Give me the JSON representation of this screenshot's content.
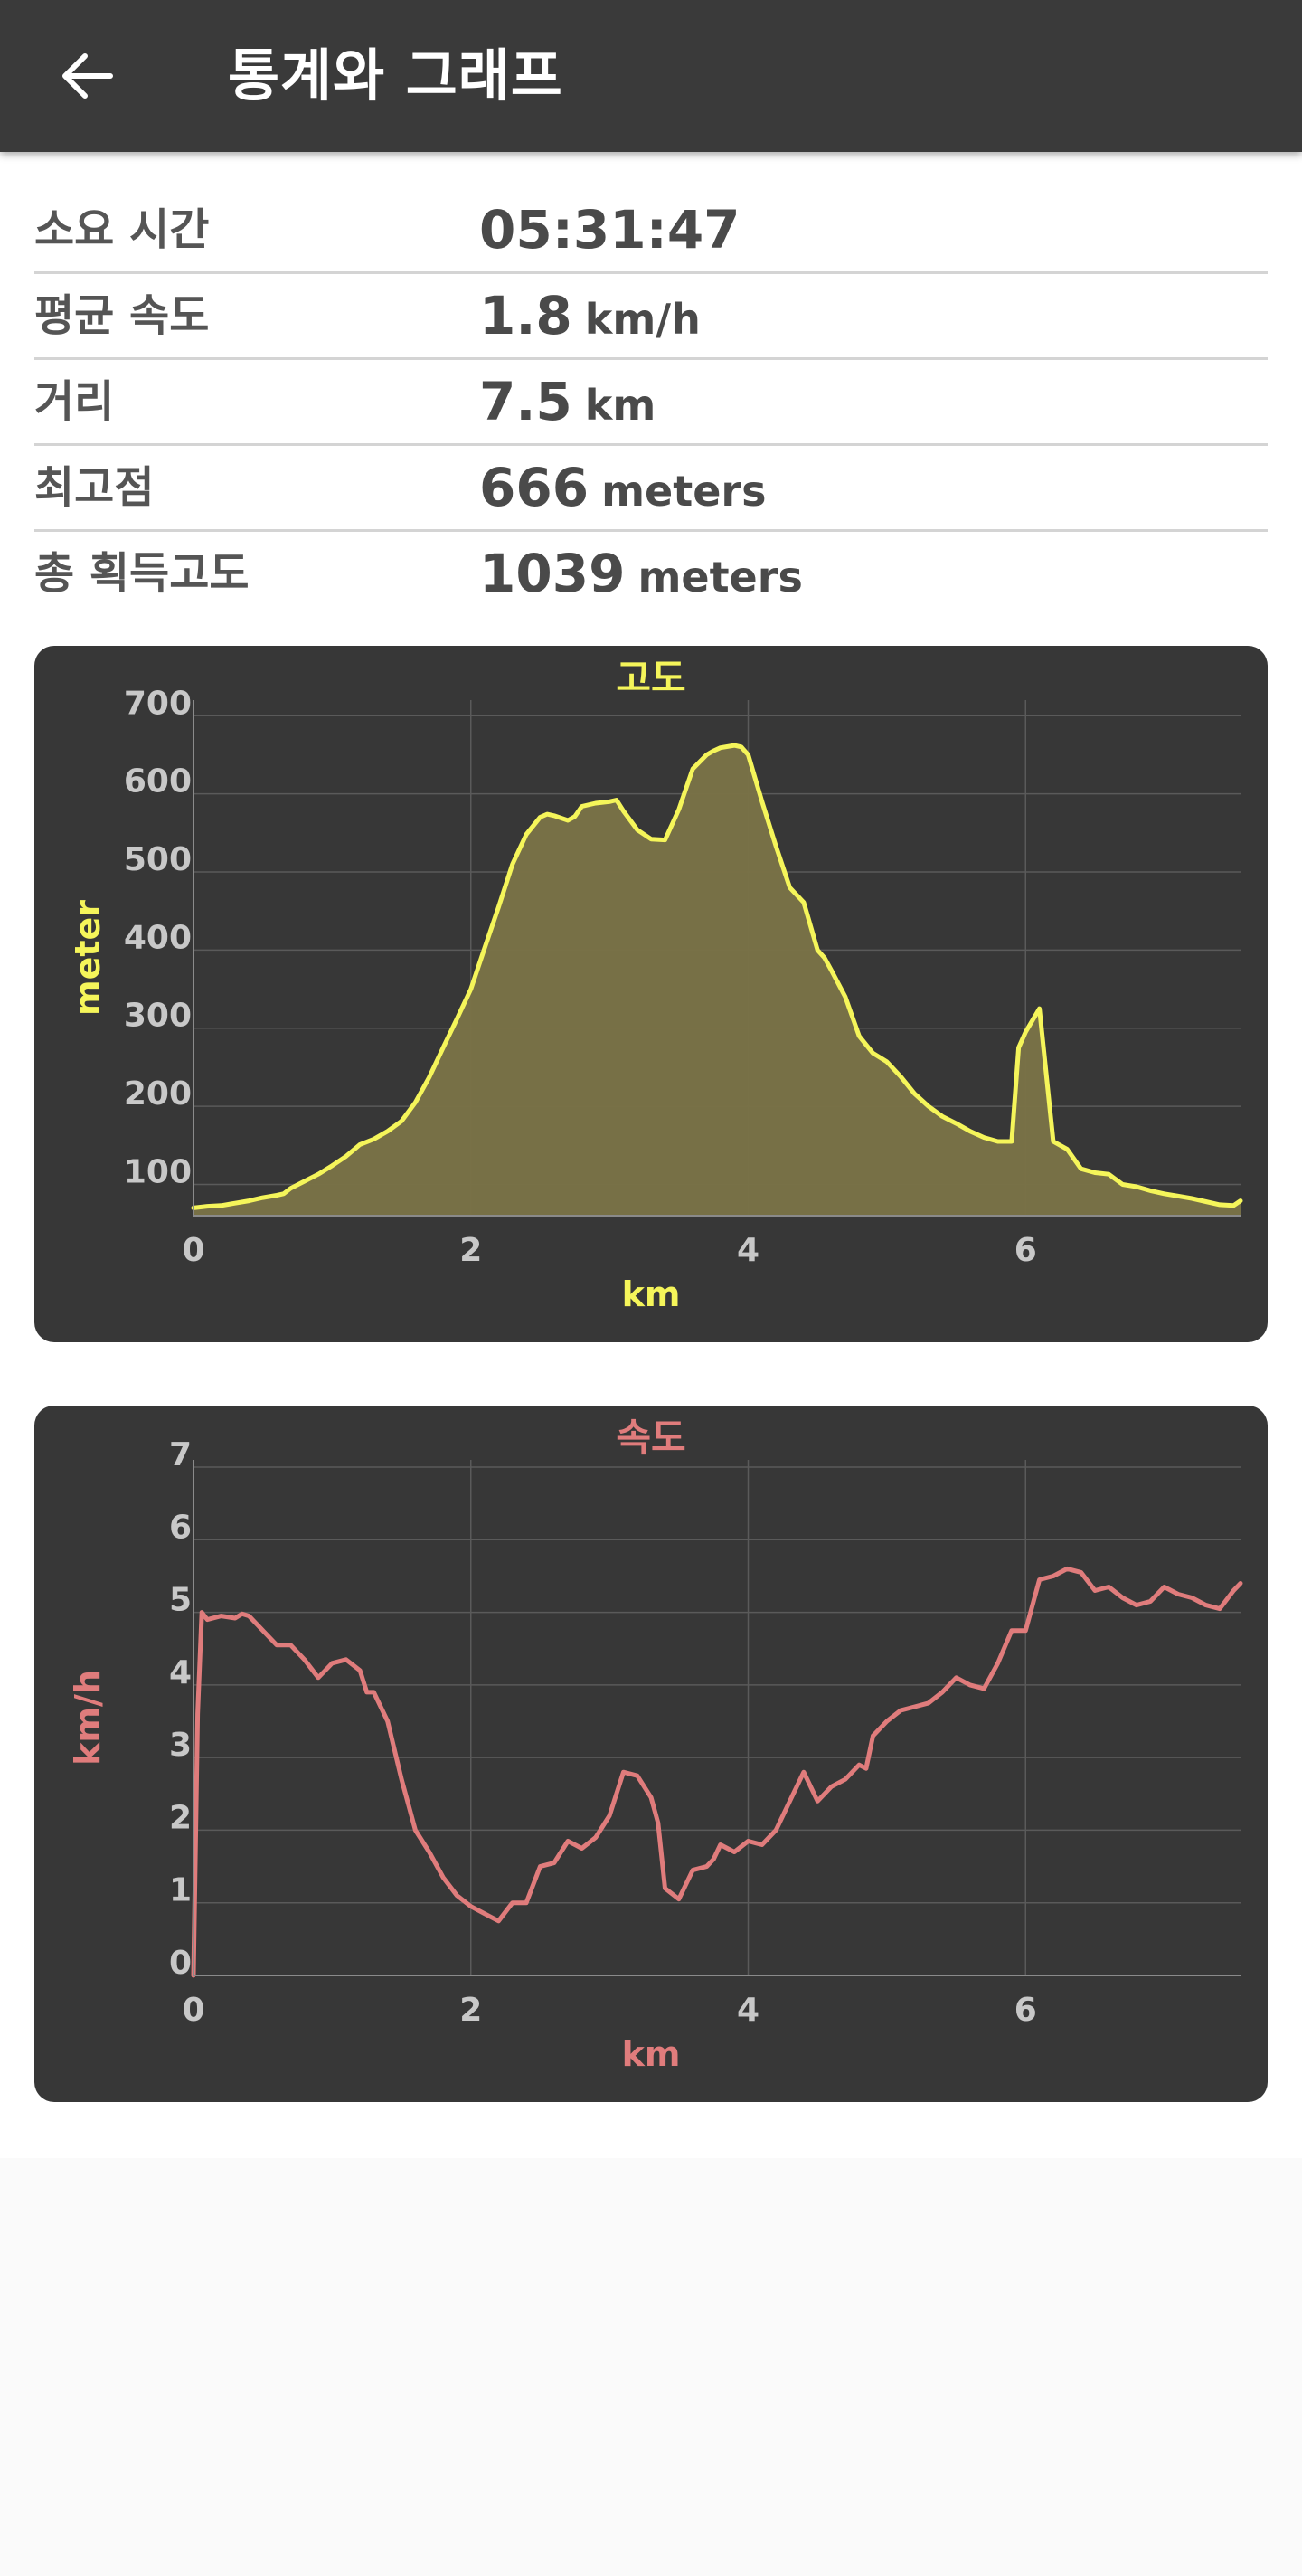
{
  "appbar": {
    "title": "통계와 그래프",
    "back_icon": "arrow-left-icon"
  },
  "stats": [
    {
      "label": "소요 시간",
      "value": "05:31:47",
      "unit": ""
    },
    {
      "label": "평균 속도",
      "value": "1.8",
      "unit": "km/h"
    },
    {
      "label": "거리",
      "value": "7.5",
      "unit": "km"
    },
    {
      "label": "최고점",
      "value": "666",
      "unit": "meters"
    },
    {
      "label": "총 획득고도",
      "value": "1039",
      "unit": "meters"
    }
  ],
  "chart_data": [
    {
      "type": "area",
      "title": "고도",
      "xlabel": "km",
      "ylabel": "meter",
      "xlim": [
        0,
        7.55
      ],
      "ylim": [
        60,
        720
      ],
      "xticks": [
        0,
        2,
        4,
        6
      ],
      "yticks": [
        100,
        200,
        300,
        400,
        500,
        600,
        700
      ],
      "grid": true,
      "color": "#f5f55a",
      "fill": "#7a7347",
      "x": [
        0,
        0.1,
        0.2,
        0.3,
        0.4,
        0.5,
        0.6,
        0.65,
        0.7,
        0.8,
        0.9,
        1.0,
        1.1,
        1.2,
        1.3,
        1.4,
        1.5,
        1.6,
        1.7,
        1.8,
        1.9,
        2.0,
        2.1,
        2.2,
        2.3,
        2.4,
        2.5,
        2.55,
        2.6,
        2.7,
        2.75,
        2.8,
        2.9,
        3.0,
        3.05,
        3.1,
        3.2,
        3.3,
        3.4,
        3.5,
        3.6,
        3.7,
        3.75,
        3.8,
        3.9,
        3.95,
        4.0,
        4.1,
        4.2,
        4.3,
        4.4,
        4.5,
        4.55,
        4.6,
        4.7,
        4.8,
        4.9,
        5.0,
        5.1,
        5.2,
        5.3,
        5.4,
        5.5,
        5.6,
        5.7,
        5.8,
        5.9,
        5.95,
        6.0,
        6.1,
        6.2,
        6.3,
        6.4,
        6.5,
        6.6,
        6.7,
        6.8,
        6.9,
        7.0,
        7.1,
        7.2,
        7.3,
        7.4,
        7.5,
        7.55
      ],
      "y": [
        70,
        72,
        73,
        76,
        79,
        83,
        86,
        88,
        95,
        104,
        113,
        124,
        136,
        151,
        158,
        168,
        181,
        205,
        237,
        275,
        312,
        350,
        403,
        455,
        510,
        548,
        570,
        574,
        572,
        566,
        571,
        584,
        588,
        590,
        592,
        578,
        554,
        542,
        541,
        580,
        632,
        650,
        655,
        659,
        662,
        660,
        650,
        590,
        533,
        480,
        461,
        400,
        390,
        374,
        340,
        290,
        268,
        257,
        238,
        216,
        200,
        187,
        178,
        168,
        160,
        155,
        155,
        275,
        295,
        325,
        155,
        145,
        120,
        115,
        113,
        100,
        97,
        92,
        88,
        85,
        82,
        78,
        74,
        73,
        79
      ]
    },
    {
      "type": "line",
      "title": "속도",
      "xlabel": "km",
      "ylabel": "km/h",
      "xlim": [
        0,
        7.55
      ],
      "ylim": [
        0,
        7.1
      ],
      "xticks": [
        0,
        2,
        4,
        6
      ],
      "yticks": [
        0,
        1,
        2,
        3,
        4,
        5,
        6,
        7
      ],
      "grid": true,
      "color": "#e07c7c",
      "x": [
        0,
        0.03,
        0.06,
        0.1,
        0.2,
        0.3,
        0.35,
        0.4,
        0.5,
        0.6,
        0.7,
        0.8,
        0.9,
        1.0,
        1.1,
        1.2,
        1.25,
        1.3,
        1.4,
        1.5,
        1.6,
        1.7,
        1.8,
        1.9,
        2.0,
        2.1,
        2.2,
        2.3,
        2.4,
        2.5,
        2.6,
        2.7,
        2.8,
        2.9,
        3.0,
        3.05,
        3.1,
        3.2,
        3.3,
        3.35,
        3.4,
        3.5,
        3.6,
        3.7,
        3.75,
        3.8,
        3.9,
        4.0,
        4.1,
        4.2,
        4.3,
        4.4,
        4.5,
        4.6,
        4.7,
        4.8,
        4.85,
        4.9,
        5.0,
        5.1,
        5.2,
        5.3,
        5.4,
        5.5,
        5.6,
        5.7,
        5.8,
        5.9,
        6.0,
        6.1,
        6.2,
        6.3,
        6.4,
        6.5,
        6.6,
        6.7,
        6.8,
        6.9,
        7.0,
        7.1,
        7.2,
        7.3,
        7.4,
        7.5,
        7.55
      ],
      "y": [
        0,
        3.6,
        5.0,
        4.9,
        4.95,
        4.92,
        4.98,
        4.95,
        4.75,
        4.55,
        4.55,
        4.35,
        4.1,
        4.3,
        4.35,
        4.2,
        3.9,
        3.9,
        3.5,
        2.7,
        2.0,
        1.7,
        1.35,
        1.1,
        0.95,
        0.85,
        0.75,
        1.0,
        1.0,
        1.5,
        1.55,
        1.85,
        1.75,
        1.9,
        2.2,
        2.5,
        2.8,
        2.75,
        2.45,
        2.1,
        1.2,
        1.05,
        1.45,
        1.5,
        1.6,
        1.8,
        1.7,
        1.85,
        1.8,
        2.0,
        2.4,
        2.8,
        2.4,
        2.6,
        2.7,
        2.9,
        2.85,
        3.3,
        3.5,
        3.65,
        3.7,
        3.75,
        3.9,
        4.1,
        4.0,
        3.95,
        4.3,
        4.75,
        4.75,
        5.45,
        5.5,
        5.6,
        5.55,
        5.3,
        5.35,
        5.2,
        5.1,
        5.15,
        5.35,
        5.25,
        5.2,
        5.1,
        5.05,
        5.3,
        5.4
      ]
    }
  ]
}
